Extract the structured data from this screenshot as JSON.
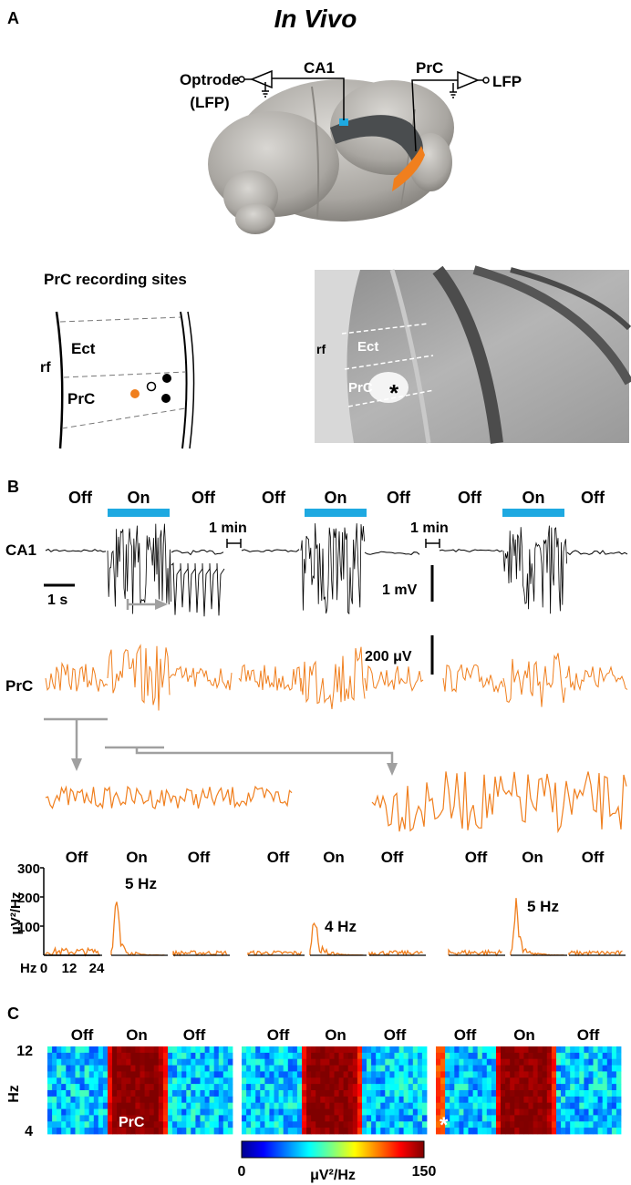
{
  "panel_a": {
    "letter": "A",
    "title": "In Vivo",
    "optrode_label_1": "Optrode",
    "optrode_label_2": "(LFP)",
    "ca1_label": "CA1",
    "prc_label": "PrC",
    "lfp_label": "LFP",
    "sites_title": "PrC recording sites",
    "sites_rf": "rf",
    "sites_ect": "Ect",
    "sites_prc": "PrC",
    "histo_rf": "rf",
    "histo_ect": "Ect",
    "histo_prc": "PrC",
    "histo_asterisk": "*",
    "colors": {
      "orange": "#f07f1e",
      "blue": "#1ea9e1",
      "brain": "#b8b5b0",
      "hippocampus": "#4a4d4f"
    }
  },
  "panel_b": {
    "letter": "B",
    "blocks": [
      {
        "off1": "Off",
        "on": "On",
        "off2": "Off"
      },
      {
        "off1": "Off",
        "on": "On",
        "off2": "Off"
      },
      {
        "off1": "Off",
        "on": "On",
        "off2": "Off"
      }
    ],
    "gap_label_1": "1 min",
    "gap_label_2": "1 min",
    "ca1_label": "CA1",
    "prc_label": "PrC",
    "time_scale": "1 s",
    "mv_scale": "1 mV",
    "uv_scale": "200 μV",
    "spectra": {
      "y_axis_label": "μV²/Hz",
      "y_ticks": [
        "300",
        "200",
        "100"
      ],
      "x_ticks": [
        "Hz",
        "0",
        "12",
        "24"
      ],
      "peaks": [
        "5 Hz",
        "4 Hz",
        "5 Hz"
      ]
    }
  },
  "panel_c": {
    "letter": "C",
    "y_label": "Hz",
    "y_ticks": [
      "12",
      "4"
    ],
    "maps": [
      {
        "off1": "Off",
        "on": "On",
        "off2": "Off",
        "inner": "PrC"
      },
      {
        "off1": "Off",
        "on": "On",
        "off2": "Off",
        "inner": ""
      },
      {
        "off1": "Off",
        "on": "On",
        "off2": "Off",
        "inner": "*"
      }
    ],
    "colorbar_min": "0",
    "colorbar_max": "150",
    "colorbar_label": "μV²/Hz"
  }
}
